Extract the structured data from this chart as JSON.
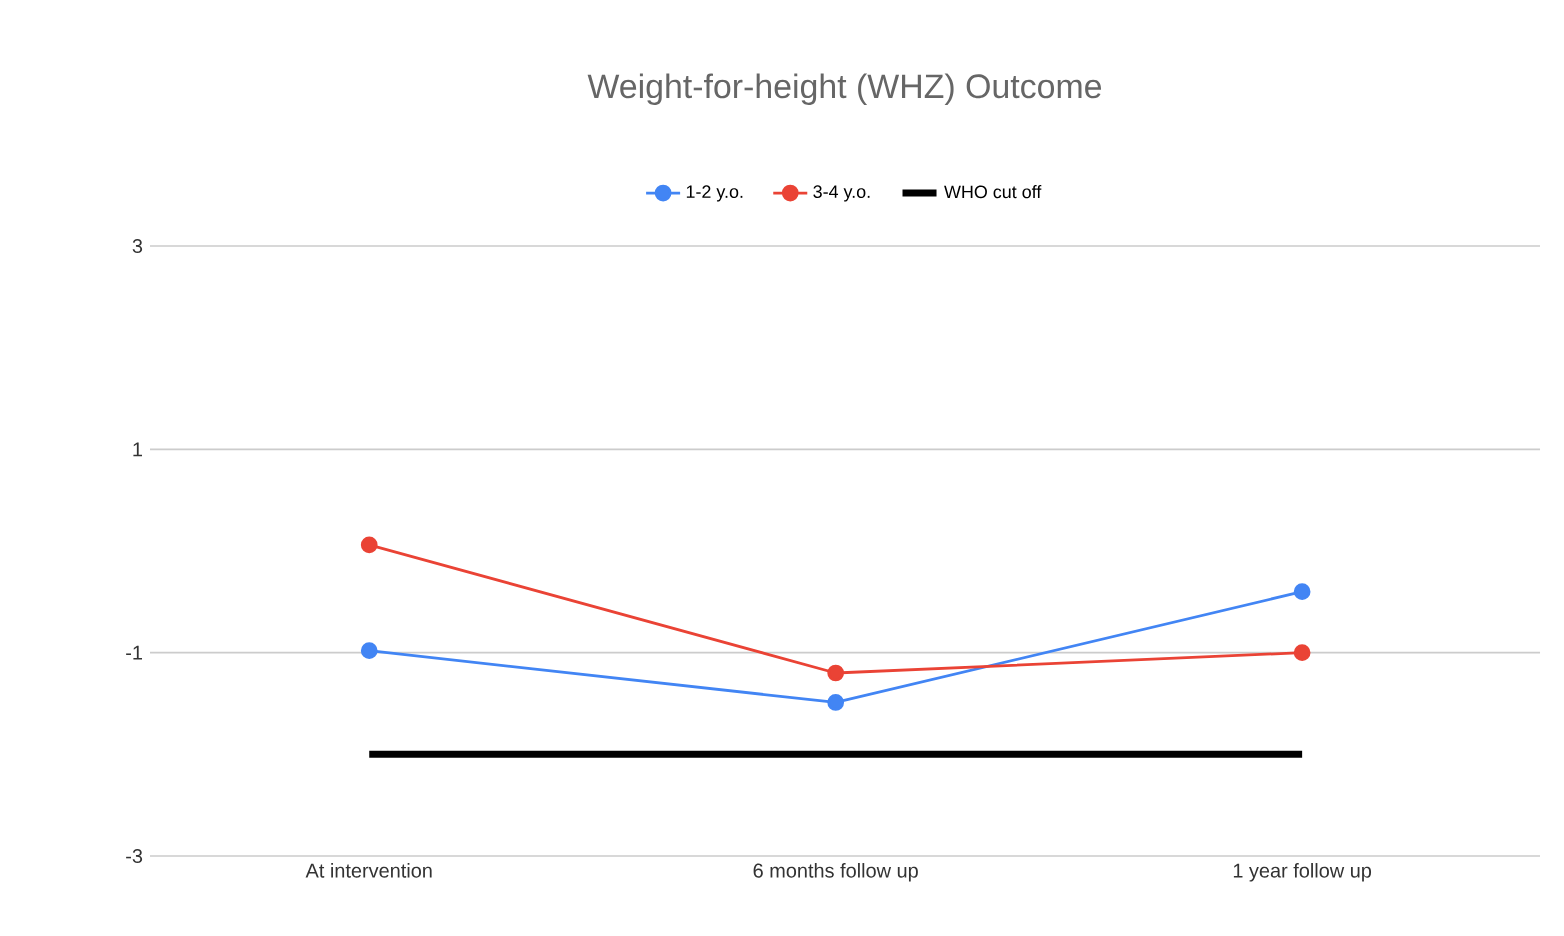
{
  "chart_data": {
    "type": "line",
    "title": "Weight-for-height (WHZ) Outcome",
    "categories": [
      "At intervention",
      "6 months follow up",
      "1 year follow up"
    ],
    "series": [
      {
        "name": "1-2 y.o.",
        "color": "#4285f4",
        "marker": "circle",
        "values": [
          -0.98,
          -1.49,
          -0.4
        ]
      },
      {
        "name": "3-4 y.o.",
        "color": "#ea4335",
        "marker": "circle",
        "values": [
          0.06,
          -1.2,
          -1.0
        ]
      },
      {
        "name": "WHO cut off",
        "color": "#000000",
        "marker": "none",
        "values": [
          -2.0,
          -2.0,
          -2.0
        ]
      }
    ],
    "ylim": [
      -3,
      3
    ],
    "yticks": [
      -3,
      -1,
      1,
      3
    ],
    "grid": "y",
    "legend": "top"
  }
}
